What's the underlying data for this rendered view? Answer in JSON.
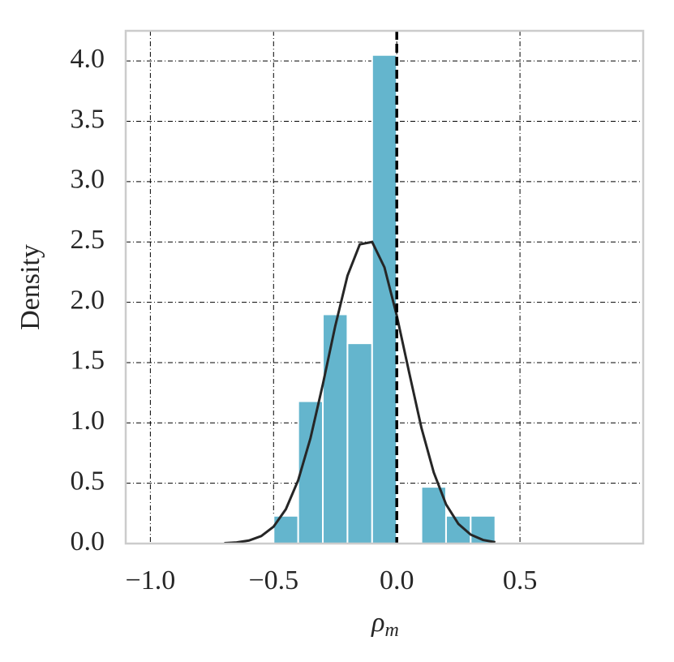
{
  "chart_data": {
    "type": "histogram",
    "ylabel": "Density",
    "xlabel": {
      "base": "ρ",
      "subscript": "m"
    },
    "bins": [
      -0.5,
      -0.4,
      -0.3,
      -0.2,
      -0.1,
      0.0,
      0.1,
      0.2,
      0.3,
      0.4,
      0.5,
      0.6
    ],
    "values": [
      0.23,
      1.18,
      1.9,
      1.66,
      4.05,
      0,
      0.47,
      0.23,
      0.23,
      0,
      0
    ],
    "color": "#64b5cd",
    "curve": {
      "color": "#262626",
      "x": [
        -0.7,
        -0.65,
        -0.6,
        -0.55,
        -0.5,
        -0.45,
        -0.4,
        -0.35,
        -0.3,
        -0.25,
        -0.2,
        -0.15,
        -0.1,
        -0.05,
        0.0,
        0.05,
        0.1,
        0.15,
        0.2,
        0.25,
        0.3,
        0.35,
        0.4
      ],
      "values": [
        0.003,
        0.009,
        0.025,
        0.062,
        0.14,
        0.285,
        0.525,
        0.875,
        1.32,
        1.8,
        2.22,
        2.48,
        2.5,
        2.29,
        1.89,
        1.42,
        0.96,
        0.59,
        0.325,
        0.163,
        0.074,
        0.03,
        0.011
      ]
    },
    "vline": {
      "x": 0,
      "color": "#000000",
      "style": "dashed"
    },
    "xlim": [
      -1.1,
      1.0
    ],
    "ylim": [
      0,
      4.25
    ],
    "xticks": [
      {
        "value": -1.0,
        "label": "−1.0"
      },
      {
        "value": -0.5,
        "label": "−0.5"
      },
      {
        "value": 0.0,
        "label": "0.0"
      },
      0.5
    ],
    "yticks": [
      {
        "value": 0,
        "label": "0.0"
      },
      0.5,
      {
        "value": 1,
        "label": "1.0"
      },
      1.5,
      {
        "value": 2,
        "label": "2.0"
      },
      2.5,
      {
        "value": 3,
        "label": "3.0"
      },
      3.5,
      {
        "value": 4,
        "label": "4.0"
      }
    ],
    "grid": true
  }
}
